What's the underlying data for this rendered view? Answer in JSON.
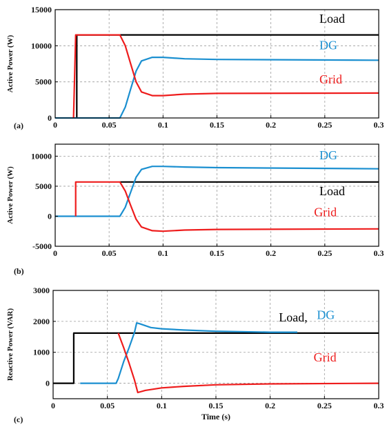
{
  "colors": {
    "load": "#000000",
    "dg": "#1a8fd0",
    "grid": "#ee1c1c",
    "gridlines": "#9a9a9a"
  },
  "chart_data": [
    {
      "type": "line",
      "panel_label": "(a)",
      "ylabel": "Active Power (W)",
      "xlabel": "",
      "xlim": [
        0,
        0.3
      ],
      "ylim": [
        0,
        15000
      ],
      "x_ticks": [
        "0",
        "0.05",
        "0.1",
        "0.15",
        "0.2",
        "0.25",
        "0.3"
      ],
      "y_ticks": [
        "0",
        "5000",
        "10000",
        "15000"
      ],
      "grid": true,
      "series": [
        {
          "name": "Load",
          "color_key": "load",
          "points": [
            [
              0.02,
              0
            ],
            [
              0.02,
              11500
            ],
            [
              0.3,
              11500
            ]
          ]
        },
        {
          "name": "DG",
          "color_key": "dg",
          "points": [
            [
              0,
              0
            ],
            [
              0.06,
              0
            ],
            [
              0.065,
              1500
            ],
            [
              0.07,
              4000
            ],
            [
              0.075,
              6500
            ],
            [
              0.08,
              7900
            ],
            [
              0.09,
              8400
            ],
            [
              0.1,
              8400
            ],
            [
              0.12,
              8200
            ],
            [
              0.15,
              8100
            ],
            [
              0.3,
              8000
            ]
          ]
        },
        {
          "name": "Grid",
          "color_key": "grid",
          "points": [
            [
              0.017,
              0
            ],
            [
              0.019,
              11500
            ],
            [
              0.06,
              11500
            ],
            [
              0.065,
              10000
            ],
            [
              0.07,
              7500
            ],
            [
              0.075,
              5000
            ],
            [
              0.08,
              3600
            ],
            [
              0.09,
              3100
            ],
            [
              0.1,
              3100
            ],
            [
              0.12,
              3300
            ],
            [
              0.15,
              3400
            ],
            [
              0.3,
              3450
            ]
          ]
        }
      ],
      "annotations": [
        {
          "text": "Load",
          "color_key": "load",
          "x": 0.245,
          "y": 13200
        },
        {
          "text": "DG",
          "color_key": "dg",
          "x": 0.245,
          "y": 9500
        },
        {
          "text": "Grid",
          "color_key": "grid",
          "x": 0.245,
          "y": 4800
        }
      ]
    },
    {
      "type": "line",
      "panel_label": "(b)",
      "ylabel": "Active Power  (W)",
      "xlabel": "",
      "xlim": [
        0,
        0.3
      ],
      "ylim": [
        -5000,
        12000
      ],
      "x_ticks": [
        "0",
        "0.05",
        "0.1",
        "0.15",
        "0.2",
        "0.25",
        "0.3"
      ],
      "y_ticks": [
        "-5000",
        "0",
        "5000",
        "10000"
      ],
      "grid": true,
      "series": [
        {
          "name": "Load",
          "color_key": "load",
          "points": [
            [
              0.06,
              5700
            ],
            [
              0.3,
              5700
            ]
          ]
        },
        {
          "name": "DG",
          "color_key": "dg",
          "points": [
            [
              0,
              0
            ],
            [
              0.06,
              0
            ],
            [
              0.065,
              1500
            ],
            [
              0.07,
              4000
            ],
            [
              0.075,
              6500
            ],
            [
              0.08,
              7800
            ],
            [
              0.09,
              8300
            ],
            [
              0.1,
              8300
            ],
            [
              0.12,
              8200
            ],
            [
              0.15,
              8100
            ],
            [
              0.3,
              7900
            ]
          ]
        },
        {
          "name": "Grid",
          "color_key": "grid",
          "points": [
            [
              0.019,
              0
            ],
            [
              0.019,
              5700
            ],
            [
              0.06,
              5700
            ],
            [
              0.065,
              4200
            ],
            [
              0.07,
              1800
            ],
            [
              0.075,
              -500
            ],
            [
              0.08,
              -1800
            ],
            [
              0.09,
              -2400
            ],
            [
              0.1,
              -2500
            ],
            [
              0.12,
              -2300
            ],
            [
              0.15,
              -2200
            ],
            [
              0.3,
              -2100
            ]
          ]
        }
      ],
      "annotations": [
        {
          "text": "DG",
          "color_key": "dg",
          "x": 0.245,
          "y": 9500
        },
        {
          "text": "Load",
          "color_key": "load",
          "x": 0.245,
          "y": 3500
        },
        {
          "text": "Grid",
          "color_key": "grid",
          "x": 0.24,
          "y": 0
        }
      ]
    },
    {
      "type": "line",
      "panel_label": "(c)",
      "ylabel": "Reactive Power (VAR)",
      "xlabel": "Time (s)",
      "xlim": [
        0,
        0.3
      ],
      "ylim": [
        -500,
        3000
      ],
      "x_ticks": [
        "0",
        "0.05",
        "0.1",
        "0.15",
        "0.2",
        "0.25",
        "0.3"
      ],
      "y_ticks": [
        "0",
        "1000",
        "2000",
        "3000"
      ],
      "grid": true,
      "series": [
        {
          "name": "Load",
          "color_key": "load",
          "points": [
            [
              0,
              0
            ],
            [
              0.019,
              0
            ],
            [
              0.019,
              1620
            ],
            [
              0.3,
              1620
            ]
          ]
        },
        {
          "name": "DG",
          "color_key": "dg",
          "points": [
            [
              0.025,
              0
            ],
            [
              0.058,
              0
            ],
            [
              0.06,
              150
            ],
            [
              0.065,
              700
            ],
            [
              0.07,
              1150
            ],
            [
              0.075,
              1650
            ],
            [
              0.077,
              1950
            ],
            [
              0.08,
              1920
            ],
            [
              0.09,
              1800
            ],
            [
              0.1,
              1760
            ],
            [
              0.12,
              1720
            ],
            [
              0.15,
              1680
            ],
            [
              0.2,
              1650
            ],
            [
              0.225,
              1650
            ]
          ]
        },
        {
          "name": "Grid",
          "color_key": "grid",
          "points": [
            [
              0.06,
              1620
            ],
            [
              0.065,
              1150
            ],
            [
              0.07,
              650
            ],
            [
              0.075,
              100
            ],
            [
              0.078,
              -300
            ],
            [
              0.085,
              -230
            ],
            [
              0.1,
              -150
            ],
            [
              0.12,
              -100
            ],
            [
              0.15,
              -50
            ],
            [
              0.2,
              -20
            ],
            [
              0.3,
              0
            ]
          ]
        }
      ],
      "annotations": [
        {
          "text": "Load,",
          "color_key": "load",
          "x": 0.208,
          "y": 2000
        },
        {
          "text": "DG",
          "color_key": "dg",
          "x": 0.243,
          "y": 2080
        },
        {
          "text": "Grid",
          "color_key": "grid",
          "x": 0.24,
          "y": 700
        }
      ]
    }
  ]
}
